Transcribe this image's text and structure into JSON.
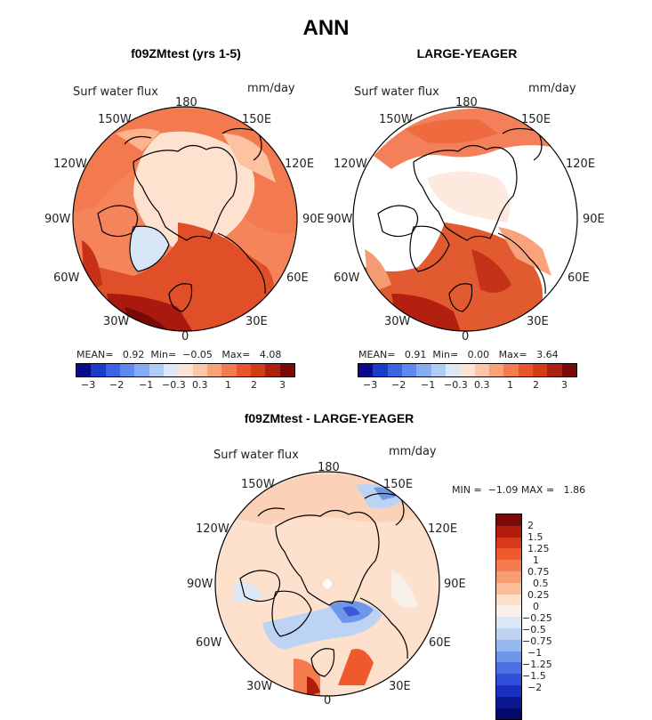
{
  "title": "ANN",
  "panel1": {
    "title": "f09ZMtest (yrs 1-5)",
    "variable": "Surf water flux",
    "units": "mm/day",
    "stats": {
      "mean_label": "MEAN=",
      "mean": "0.92",
      "min_label": "Min=",
      "min": "−0.05",
      "max_label": "Max=",
      "max": "4.08"
    }
  },
  "panel2": {
    "title": "LARGE-YEAGER",
    "variable": "Surf water flux",
    "units": "mm/day",
    "stats": {
      "mean_label": "MEAN=",
      "mean": "0.91",
      "min_label": "Min=",
      "min": "0.00",
      "max_label": "Max=",
      "max": "3.64"
    }
  },
  "panel3": {
    "title": "f09ZMtest - LARGE-YEAGER",
    "variable": "Surf water flux",
    "units": "mm/day",
    "stats": {
      "min_label": "MIN =",
      "min": "−1.09",
      "max_label": "MAX =",
      "max": "1.86"
    }
  },
  "longitudes": {
    "n": "180",
    "s": "0",
    "e": "90E",
    "w": "90W",
    "ne": "150E",
    "nw": "150W",
    "ene": "120E",
    "wnw": "120W",
    "ese": "60E",
    "wsw": "60W",
    "se": "30E",
    "sw": "30W"
  },
  "colorbar_top": {
    "colors": [
      "#0a0a8c",
      "#1a3cc8",
      "#3a64e0",
      "#5c8af0",
      "#86acf5",
      "#b2cdf5",
      "#dbe8f7",
      "#fde4d4",
      "#fcc5a6",
      "#f9a27a",
      "#f47b50",
      "#e9552d",
      "#d23a1a",
      "#ac2010",
      "#7a0a08"
    ],
    "labels": [
      "−3",
      "−2",
      "−1",
      "−0.3",
      "0.3",
      "1",
      "2",
      "3"
    ]
  },
  "colorbar_diff": {
    "colors": [
      "#7a0a08",
      "#b11c0e",
      "#d8391a",
      "#ee5a2d",
      "#f57c4e",
      "#f89d73",
      "#fbbd98",
      "#fde0c8",
      "#f7efe8",
      "#dde8f6",
      "#bcd3f4",
      "#96b8f0",
      "#6e97ea",
      "#4a70e4",
      "#2f4fd8",
      "#1a30c0",
      "#0a1890",
      "#03096a"
    ],
    "labels": [
      "2",
      "1.5",
      "1.25",
      "1",
      "0.75",
      "0.5",
      "0.25",
      "0",
      "−0.25",
      "−0.5",
      "−0.75",
      "−1",
      "−1.25",
      "−1.5",
      "−2"
    ]
  }
}
